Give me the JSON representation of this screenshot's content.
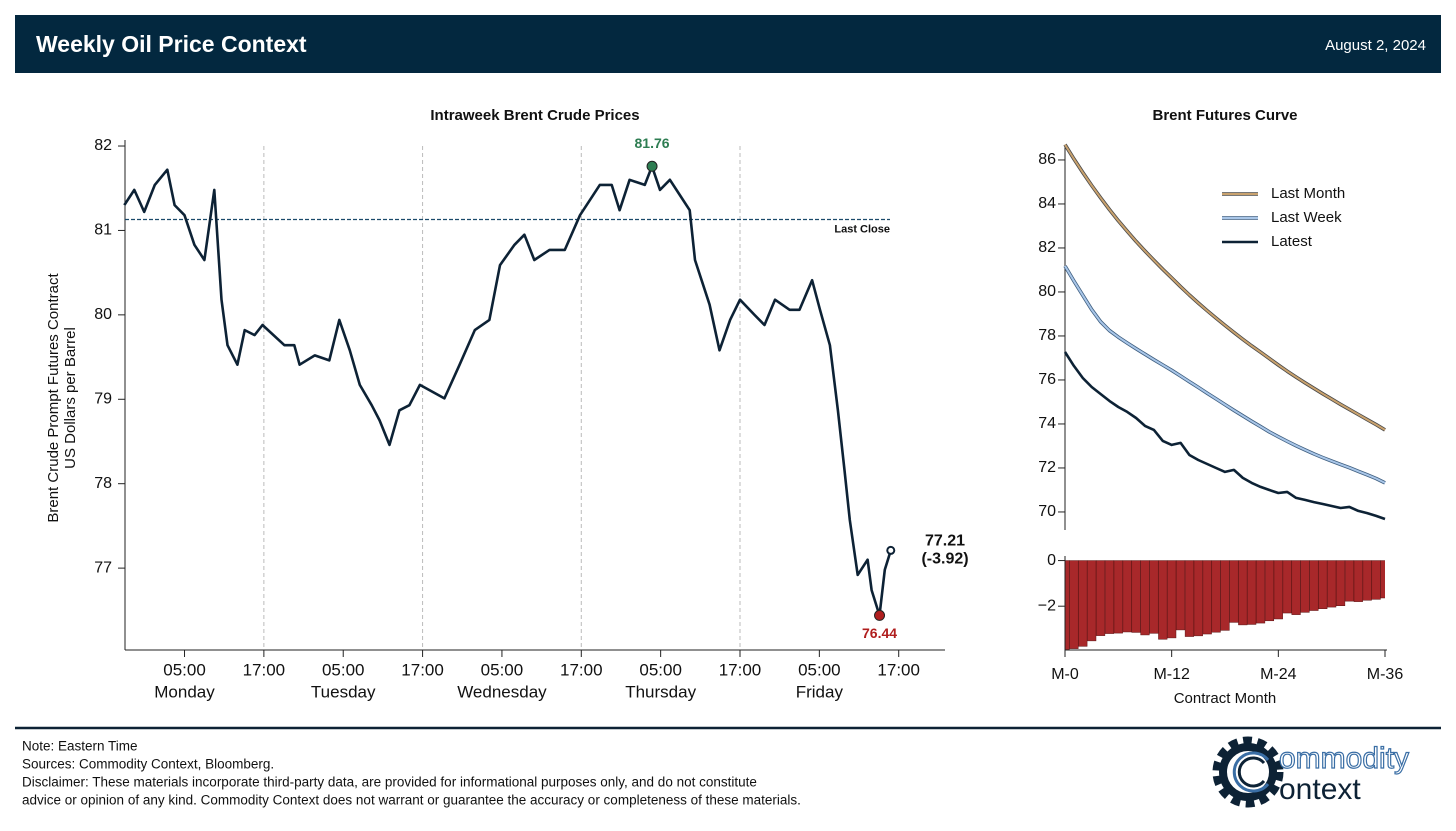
{
  "header": {
    "title": "Weekly Oil Price Context",
    "date": "August 2, 2024"
  },
  "chart_data": [
    {
      "type": "line",
      "title": "Intraweek Brent Crude Prices",
      "ylabel": [
        "Brent Crude Prompt Futures Contract",
        "US Dollars per Barrel"
      ],
      "x": [
        -4.1,
        -2.6,
        -1.1,
        0.5,
        2.4,
        3.5,
        5.0,
        6.5,
        8.0,
        9.5,
        10.6,
        11.5,
        13.0,
        14.1,
        15.6,
        16.8,
        20.1,
        21.6,
        22.4,
        24.7,
        26.9,
        28.4,
        30.0,
        31.5,
        33.3,
        34.5,
        36.0,
        37.5,
        39.0,
        40.6,
        44.3,
        46.6,
        48.9,
        51.1,
        52.7,
        54.9,
        56.4,
        57.9,
        60.2,
        62.5,
        64.8,
        67.8,
        69.6,
        70.8,
        72.3,
        74.6,
        75.7,
        76.9,
        78.4,
        79.9,
        81.4,
        82.2,
        83.2,
        84.4,
        85.9,
        87.5,
        89.0,
        91.2,
        92.7,
        94.3,
        96.5,
        98.0,
        99.9,
        101.1,
        102.6,
        103.8,
        104.8,
        105.6,
        106.8,
        108.3,
        108.9,
        110.1,
        110.9,
        111.8
      ],
      "values": [
        81.3,
        81.48,
        81.22,
        81.54,
        81.72,
        81.3,
        81.18,
        80.83,
        80.65,
        81.48,
        80.18,
        79.64,
        79.41,
        79.82,
        79.76,
        79.88,
        79.64,
        79.64,
        79.41,
        79.52,
        79.46,
        79.94,
        79.58,
        79.17,
        78.93,
        78.75,
        78.46,
        78.87,
        78.93,
        79.17,
        79.01,
        79.41,
        79.82,
        79.94,
        80.59,
        80.83,
        80.95,
        80.65,
        80.77,
        80.77,
        81.18,
        81.54,
        81.54,
        81.24,
        81.6,
        81.54,
        81.76,
        81.48,
        81.6,
        81.42,
        81.24,
        80.65,
        80.41,
        80.12,
        79.58,
        79.94,
        80.18,
        80.0,
        79.88,
        80.18,
        80.06,
        80.06,
        80.41,
        80.06,
        79.64,
        78.87,
        78.16,
        77.57,
        76.92,
        77.1,
        76.74,
        76.44,
        76.98,
        77.21
      ],
      "color": "#0d2235",
      "max_color": "#2e7d52",
      "min_color": "#b01e1e",
      "xlim": [
        -4,
        120
      ],
      "ylim": [
        76.03,
        82.05
      ],
      "yticks": [
        77,
        78,
        79,
        80,
        81,
        82
      ],
      "xticks": [
        {
          "value": 5,
          "label": "05:00",
          "sublabel": "Monday"
        },
        {
          "value": 17,
          "label": "17:00"
        },
        {
          "value": 29,
          "label": "05:00",
          "sublabel": "Tuesday"
        },
        {
          "value": 41,
          "label": "17:00"
        },
        {
          "value": 53,
          "label": "05:00",
          "sublabel": "Wednesday"
        },
        {
          "value": 65,
          "label": "17:00"
        },
        {
          "value": 77,
          "label": "05:00",
          "sublabel": "Thursday"
        },
        {
          "value": 89,
          "label": "17:00"
        },
        {
          "value": 101,
          "label": "05:00",
          "sublabel": "Friday"
        },
        {
          "value": 113,
          "label": "17:00"
        }
      ],
      "reference_line": {
        "value": 81.13,
        "label": "Last Close",
        "color": "#1b4a6b"
      },
      "end_annotation": "(-3.92)"
    },
    {
      "type": "line",
      "title": "Brent Futures Curve",
      "xlabel": "Contract Month",
      "x": [
        0,
        1,
        2,
        3,
        4,
        5,
        6,
        7,
        8,
        9,
        10,
        11,
        12,
        13,
        14,
        15,
        16,
        17,
        18,
        19,
        20,
        21,
        22,
        23,
        24,
        25,
        26,
        27,
        28,
        29,
        30,
        31,
        32,
        33,
        34,
        35,
        36
      ],
      "xlim": [
        0,
        36
      ],
      "xticks": [
        {
          "value": 0,
          "label": "M-0"
        },
        {
          "value": 12,
          "label": "M-12"
        },
        {
          "value": 24,
          "label": "M-24"
        },
        {
          "value": 36,
          "label": "M-36"
        }
      ],
      "ylim": [
        69.18,
        86.68
      ],
      "yticks": [
        70,
        72,
        74,
        76,
        78,
        80,
        82,
        84,
        86
      ],
      "legend": "upper right",
      "series": [
        {
          "name": "Last Month",
          "color": "#c9a26e",
          "edgecolor": "#4a4a4a",
          "values": [
            86.7,
            86.05,
            85.43,
            84.84,
            84.28,
            83.75,
            83.24,
            82.76,
            82.3,
            81.86,
            81.44,
            81.03,
            80.64,
            80.24,
            79.86,
            79.5,
            79.15,
            78.81,
            78.48,
            78.16,
            77.85,
            77.55,
            77.26,
            76.97,
            76.68,
            76.4,
            76.13,
            75.87,
            75.62,
            75.37,
            75.13,
            74.89,
            74.66,
            74.43,
            74.2,
            73.97,
            73.73
          ]
        },
        {
          "name": "Last Week",
          "color": "#a9c6e8",
          "edgecolor": "#3f5f80",
          "values": [
            81.18,
            80.5,
            79.85,
            79.2,
            78.65,
            78.25,
            77.95,
            77.68,
            77.42,
            77.17,
            76.92,
            76.68,
            76.44,
            76.18,
            75.92,
            75.66,
            75.4,
            75.14,
            74.88,
            74.62,
            74.37,
            74.12,
            73.88,
            73.64,
            73.42,
            73.21,
            73.01,
            72.82,
            72.64,
            72.47,
            72.31,
            72.16,
            72.01,
            71.85,
            71.69,
            71.52,
            71.32
          ]
        },
        {
          "name": "Latest",
          "color": "#0d2235",
          "values": [
            77.27,
            76.64,
            76.09,
            75.68,
            75.36,
            75.05,
            74.77,
            74.55,
            74.27,
            73.91,
            73.73,
            73.23,
            73.05,
            73.14,
            72.59,
            72.36,
            72.18,
            72.0,
            71.82,
            71.91,
            71.55,
            71.32,
            71.14,
            71.0,
            70.86,
            70.91,
            70.64,
            70.55,
            70.45,
            70.36,
            70.27,
            70.18,
            70.23,
            70.05,
            69.95,
            69.82,
            69.68
          ]
        }
      ],
      "spread": {
        "type": "bar",
        "color": "#a8282a",
        "ylim": [
          -3.92,
          0.2
        ],
        "yticks": [
          0,
          {
            "value": -2,
            "label": "−2"
          }
        ],
        "values": [
          -3.91,
          -3.86,
          -3.76,
          -3.52,
          -3.29,
          -3.2,
          -3.18,
          -3.13,
          -3.15,
          -3.26,
          -3.19,
          -3.45,
          -3.39,
          -3.04,
          -3.33,
          -3.3,
          -3.22,
          -3.14,
          -3.06,
          -2.71,
          -2.82,
          -2.8,
          -2.74,
          -2.64,
          -2.56,
          -2.3,
          -2.37,
          -2.27,
          -2.19,
          -2.11,
          -2.04,
          -1.98,
          -1.78,
          -1.8,
          -1.74,
          -1.7,
          -1.64
        ]
      }
    }
  ],
  "footer": {
    "notes": [
      "Note: Eastern Time",
      "Sources: Commodity Context, Bloomberg.",
      "Disclaimer: These materials incorporate third-party data, are provided for informational purposes only, and do not constitute",
      "advice or opinion of any kind. Commodity Context does not warrant or guarantee the accuracy or completeness of these materials."
    ],
    "logo": [
      "ommodity",
      "ontext"
    ]
  }
}
